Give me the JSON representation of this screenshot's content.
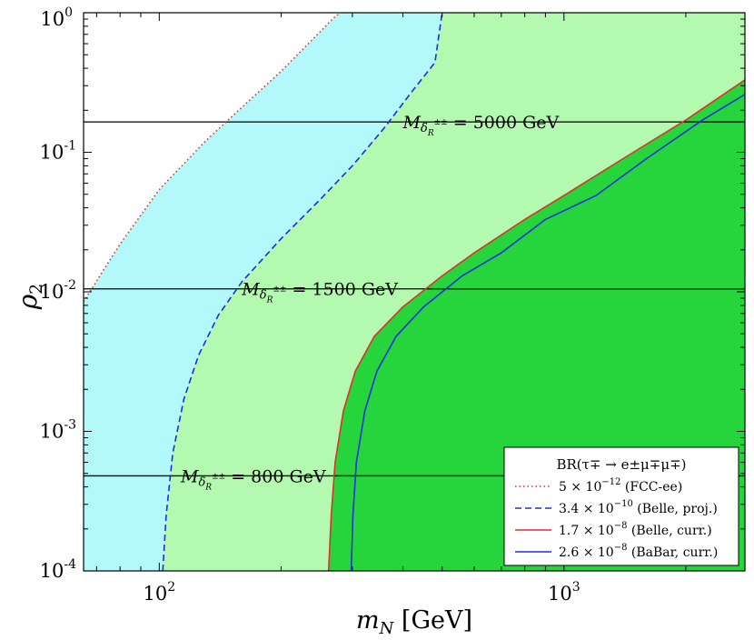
{
  "chart_data": {
    "type": "area",
    "title": "",
    "xlabel": {
      "main": "m",
      "sub": "N",
      "rest": " [GeV]"
    },
    "ylabel": {
      "main": "ρ",
      "sub": "2"
    },
    "xscale": "log",
    "yscale": "log",
    "xlim": [
      65,
      2800
    ],
    "ylim": [
      0.0001,
      1
    ],
    "x_ticks": [
      {
        "value": 100,
        "base": "10",
        "exp": "2"
      },
      {
        "value": 1000,
        "base": "10",
        "exp": "3"
      }
    ],
    "y_ticks": [
      {
        "value": 0.0001,
        "base": "10",
        "exp": "-4"
      },
      {
        "value": 0.001,
        "base": "10",
        "exp": "-3"
      },
      {
        "value": 0.01,
        "base": "10",
        "exp": "-2"
      },
      {
        "value": 0.1,
        "base": "10",
        "exp": "-1"
      },
      {
        "value": 1,
        "base": "10",
        "exp": "0"
      }
    ],
    "y_top_label": "10",
    "grid": false,
    "series": [
      {
        "name": "5 × 10⁻¹² (FCC-ee)",
        "legend_main": "5 × 10",
        "legend_exp": "−12",
        "legend_rest": " (FCC-ee)",
        "style": "dotted",
        "line_color": "#e0302b",
        "fill_color": "#b3f8fa",
        "x": [
          65,
          80,
          100,
          130,
          160,
          200,
          240,
          270,
          280
        ],
        "y": [
          0.0085,
          0.022,
          0.054,
          0.12,
          0.21,
          0.38,
          0.65,
          0.92,
          1.0
        ]
      },
      {
        "name": "3.4 × 10⁻¹⁰ (Belle, proj.)",
        "legend_main": "3.4 × 10",
        "legend_exp": "−10",
        "legend_rest": " (Belle, proj.)",
        "style": "dashed",
        "line_color": "#1a2fe0",
        "fill_color": "#b3fab0",
        "x": [
          102,
          104,
          108,
          115,
          125,
          140,
          160,
          200,
          250,
          300,
          360,
          420,
          480,
          500
        ],
        "y": [
          0.0001,
          0.00025,
          0.0007,
          0.0017,
          0.0035,
          0.0068,
          0.0118,
          0.024,
          0.046,
          0.08,
          0.15,
          0.27,
          0.44,
          1.0
        ]
      },
      {
        "name": "1.7 × 10⁻⁸ (Belle, curr.)",
        "legend_main": "1.7 × 10",
        "legend_exp": "−8",
        "legend_rest": " (Belle, curr.)",
        "style": "solid",
        "line_color": "#e0302b",
        "fill_color": "#26d43b",
        "x": [
          262,
          266,
          272,
          285,
          305,
          340,
          400,
          500,
          600,
          800,
          1000,
          1400,
          2000,
          2800
        ],
        "y": [
          0.0001,
          0.00025,
          0.0006,
          0.0014,
          0.0027,
          0.0048,
          0.0078,
          0.013,
          0.019,
          0.033,
          0.049,
          0.09,
          0.17,
          0.33
        ]
      },
      {
        "name": "2.6 × 10⁻⁸ (BaBar, curr.)",
        "legend_main": "2.6 × 10",
        "legend_exp": "−8",
        "legend_rest": " (BaBar, curr.)",
        "style": "solid",
        "line_color": "#1a2fe0",
        "fill_color": "",
        "x": [
          298,
          301,
          307,
          322,
          345,
          385,
          450,
          560,
          700,
          900,
          1200,
          1600,
          2200,
          2800
        ],
        "y": [
          0.0001,
          0.00025,
          0.0006,
          0.0014,
          0.0027,
          0.0048,
          0.0078,
          0.013,
          0.019,
          0.033,
          0.049,
          0.09,
          0.17,
          0.26
        ]
      }
    ],
    "legend": {
      "title": "BR(τ∓ → e±μ∓μ∓)",
      "placement": "lower-right"
    },
    "annotations": [
      {
        "kind": "hline",
        "y": 0.165,
        "text_main": "M",
        "text_sub": "δ",
        "text_supsub": "R",
        "text_sup": "±±",
        "text_rest": " = 5000 GeV",
        "at_x": 400
      },
      {
        "kind": "hline",
        "y": 0.0105,
        "text_main": "M",
        "text_sub": "δ",
        "text_supsub": "R",
        "text_sup": "±±",
        "text_rest": " = 1500 GeV",
        "at_x": 160
      },
      {
        "kind": "hline",
        "y": 0.00048,
        "text_main": "M",
        "text_sub": "δ",
        "text_supsub": "R",
        "text_sup": "±±",
        "text_rest": " = 800 GeV",
        "at_x": 113
      }
    ]
  }
}
